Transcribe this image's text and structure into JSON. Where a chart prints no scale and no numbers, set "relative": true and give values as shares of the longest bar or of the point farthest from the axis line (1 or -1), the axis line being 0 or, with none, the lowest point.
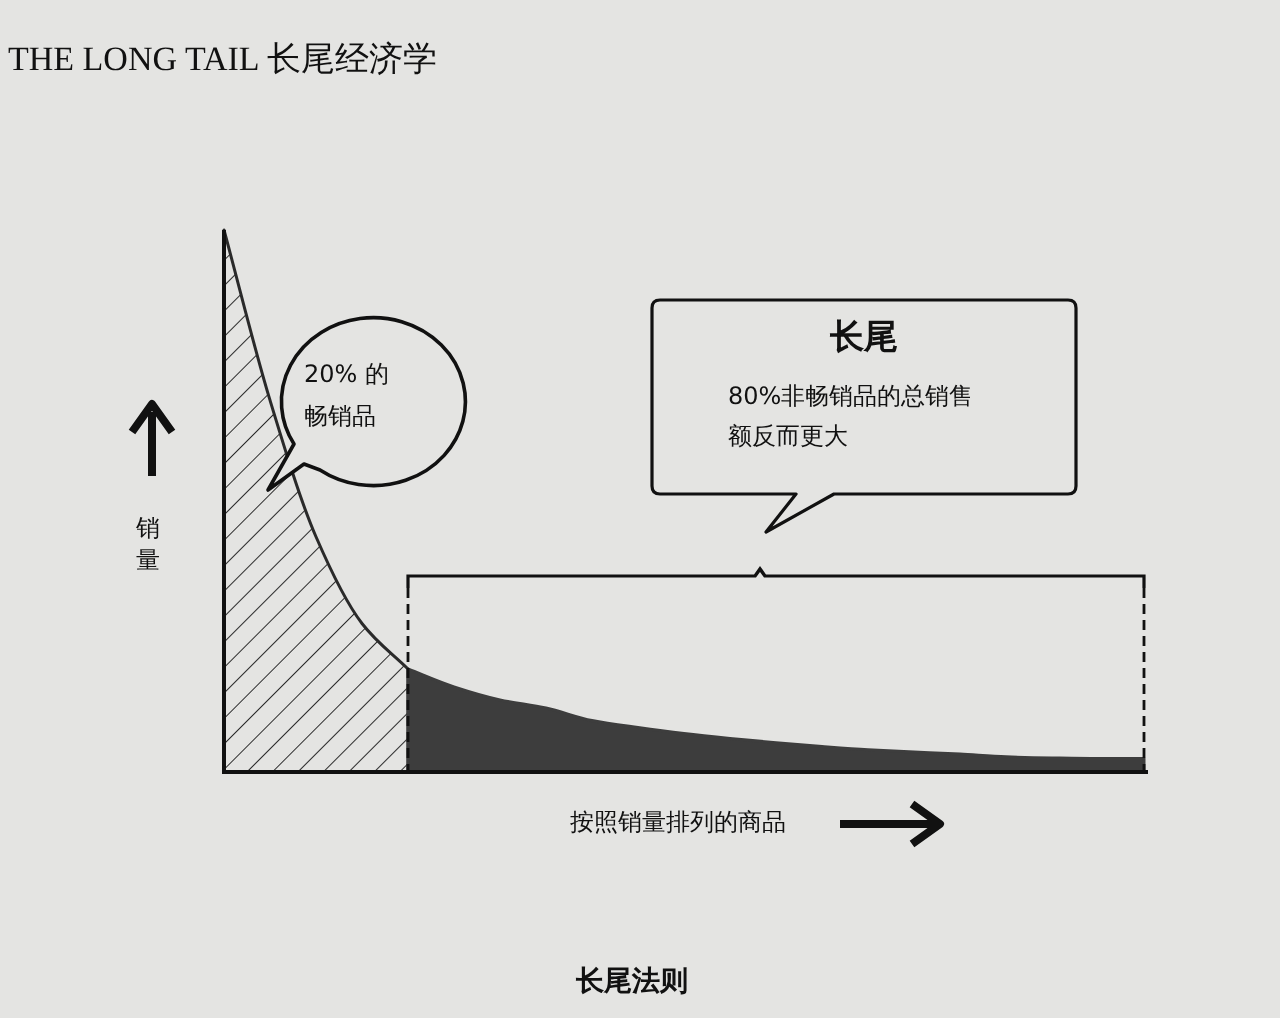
{
  "chart_data": {
    "type": "area",
    "relative": true,
    "title": "长尾法则",
    "xlabel": "按照销量排列的商品",
    "ylabel": "销量",
    "annotations": [
      "THE LONG TAIL 长尾经济学",
      "20% 的畅销品",
      "长尾",
      "80%非畅销品的总销售额反而更大"
    ],
    "categories": [
      null,
      null,
      null,
      null,
      null,
      null,
      null,
      null,
      null,
      null,
      null,
      null,
      null,
      null,
      null,
      null,
      null,
      null,
      null,
      null,
      null
    ],
    "series": [
      {
        "color": "#2a2a2a",
        "values": [
          1.0,
          0.686,
          0.434,
          0.274,
          0.19,
          null,
          null,
          null,
          null,
          null,
          null,
          null,
          null,
          null,
          null,
          null,
          null,
          null,
          null,
          null,
          null
        ]
      },
      {
        "color": "#3d3d3d",
        "values": [
          null,
          null,
          null,
          null,
          0.19,
          0.157,
          0.133,
          0.118,
          0.095,
          0.082,
          0.071,
          0.062,
          0.054,
          0.047,
          0.041,
          0.037,
          0.033,
          0.028,
          0.026,
          0.025,
          0.025
        ]
      }
    ],
    "legend": false
  }
}
